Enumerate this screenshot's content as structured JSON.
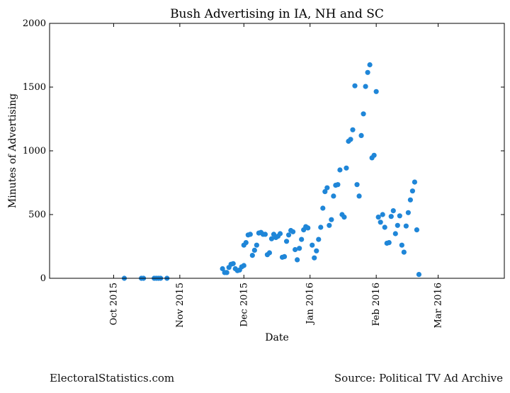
{
  "footer": {
    "left": "ElectoralStatistics.com",
    "right": "Source: Political TV Ad Archive"
  },
  "colors": {
    "points": "#1f86d8",
    "axis": "#000000"
  },
  "chart_data": {
    "type": "scatter",
    "title": "Bush Advertising in IA, NH and SC",
    "xlabel": "Date",
    "ylabel": "Minutes of Advertising",
    "x_type": "date",
    "xlim": [
      "2015-09-01",
      "2016-04-01"
    ],
    "ylim": [
      0,
      2000
    ],
    "yticks": [
      0,
      500,
      1000,
      1500,
      2000
    ],
    "xticks": [
      {
        "date": "2015-10-01",
        "label": "Oct 2015"
      },
      {
        "date": "2015-11-01",
        "label": "Nov 2015"
      },
      {
        "date": "2015-12-01",
        "label": "Dec 2015"
      },
      {
        "date": "2016-01-01",
        "label": "Jan 2016"
      },
      {
        "date": "2016-02-01",
        "label": "Feb 2016"
      },
      {
        "date": "2016-03-01",
        "label": "Mar 2016"
      }
    ],
    "grid": false,
    "legend": "none",
    "series": [
      {
        "points": [
          [
            "2015-10-06",
            0
          ],
          [
            "2015-10-14",
            0
          ],
          [
            "2015-10-15",
            0
          ],
          [
            "2015-10-20",
            0
          ],
          [
            "2015-10-21",
            0
          ],
          [
            "2015-10-22",
            0
          ],
          [
            "2015-10-23",
            0
          ],
          [
            "2015-10-26",
            0
          ],
          [
            "2015-11-21",
            75
          ],
          [
            "2015-11-22",
            45
          ],
          [
            "2015-11-23",
            45
          ],
          [
            "2015-11-24",
            85
          ],
          [
            "2015-11-25",
            110
          ],
          [
            "2015-11-26",
            115
          ],
          [
            "2015-11-27",
            75
          ],
          [
            "2015-11-28",
            60
          ],
          [
            "2015-11-29",
            65
          ],
          [
            "2015-11-30",
            90
          ],
          [
            "2015-12-01",
            100
          ],
          [
            "2015-12-01",
            260
          ],
          [
            "2015-12-02",
            280
          ],
          [
            "2015-12-03",
            340
          ],
          [
            "2015-12-04",
            345
          ],
          [
            "2015-12-05",
            180
          ],
          [
            "2015-12-06",
            220
          ],
          [
            "2015-12-07",
            260
          ],
          [
            "2015-12-08",
            355
          ],
          [
            "2015-12-09",
            360
          ],
          [
            "2015-12-10",
            345
          ],
          [
            "2015-12-11",
            345
          ],
          [
            "2015-12-12",
            185
          ],
          [
            "2015-12-13",
            200
          ],
          [
            "2015-12-14",
            310
          ],
          [
            "2015-12-15",
            345
          ],
          [
            "2015-12-16",
            320
          ],
          [
            "2015-12-17",
            330
          ],
          [
            "2015-12-18",
            350
          ],
          [
            "2015-12-19",
            165
          ],
          [
            "2015-12-20",
            170
          ],
          [
            "2015-12-21",
            290
          ],
          [
            "2015-12-22",
            340
          ],
          [
            "2015-12-23",
            375
          ],
          [
            "2015-12-24",
            365
          ],
          [
            "2015-12-25",
            225
          ],
          [
            "2015-12-26",
            145
          ],
          [
            "2015-12-27",
            235
          ],
          [
            "2015-12-28",
            305
          ],
          [
            "2015-12-29",
            380
          ],
          [
            "2015-12-30",
            405
          ],
          [
            "2015-12-31",
            395
          ],
          [
            "2016-01-02",
            260
          ],
          [
            "2016-01-03",
            160
          ],
          [
            "2016-01-04",
            215
          ],
          [
            "2016-01-05",
            305
          ],
          [
            "2016-01-06",
            400
          ],
          [
            "2016-01-07",
            550
          ],
          [
            "2016-01-08",
            680
          ],
          [
            "2016-01-09",
            710
          ],
          [
            "2016-01-10",
            415
          ],
          [
            "2016-01-11",
            460
          ],
          [
            "2016-01-12",
            645
          ],
          [
            "2016-01-13",
            730
          ],
          [
            "2016-01-14",
            735
          ],
          [
            "2016-01-15",
            850
          ],
          [
            "2016-01-16",
            500
          ],
          [
            "2016-01-17",
            480
          ],
          [
            "2016-01-18",
            865
          ],
          [
            "2016-01-19",
            1075
          ],
          [
            "2016-01-20",
            1090
          ],
          [
            "2016-01-21",
            1165
          ],
          [
            "2016-01-22",
            1510
          ],
          [
            "2016-01-23",
            735
          ],
          [
            "2016-01-24",
            645
          ],
          [
            "2016-01-25",
            1120
          ],
          [
            "2016-01-26",
            1290
          ],
          [
            "2016-01-27",
            1505
          ],
          [
            "2016-01-28",
            1615
          ],
          [
            "2016-01-29",
            1675
          ],
          [
            "2016-01-30",
            945
          ],
          [
            "2016-01-31",
            965
          ],
          [
            "2016-02-01",
            1465
          ],
          [
            "2016-02-02",
            480
          ],
          [
            "2016-02-03",
            440
          ],
          [
            "2016-02-04",
            500
          ],
          [
            "2016-02-05",
            400
          ],
          [
            "2016-02-06",
            275
          ],
          [
            "2016-02-07",
            280
          ],
          [
            "2016-02-08",
            485
          ],
          [
            "2016-02-09",
            530
          ],
          [
            "2016-02-10",
            350
          ],
          [
            "2016-02-11",
            415
          ],
          [
            "2016-02-12",
            490
          ],
          [
            "2016-02-13",
            260
          ],
          [
            "2016-02-14",
            205
          ],
          [
            "2016-02-15",
            410
          ],
          [
            "2016-02-16",
            515
          ],
          [
            "2016-02-17",
            615
          ],
          [
            "2016-02-18",
            685
          ],
          [
            "2016-02-19",
            755
          ],
          [
            "2016-02-20",
            380
          ],
          [
            "2016-02-21",
            30
          ]
        ]
      }
    ]
  }
}
